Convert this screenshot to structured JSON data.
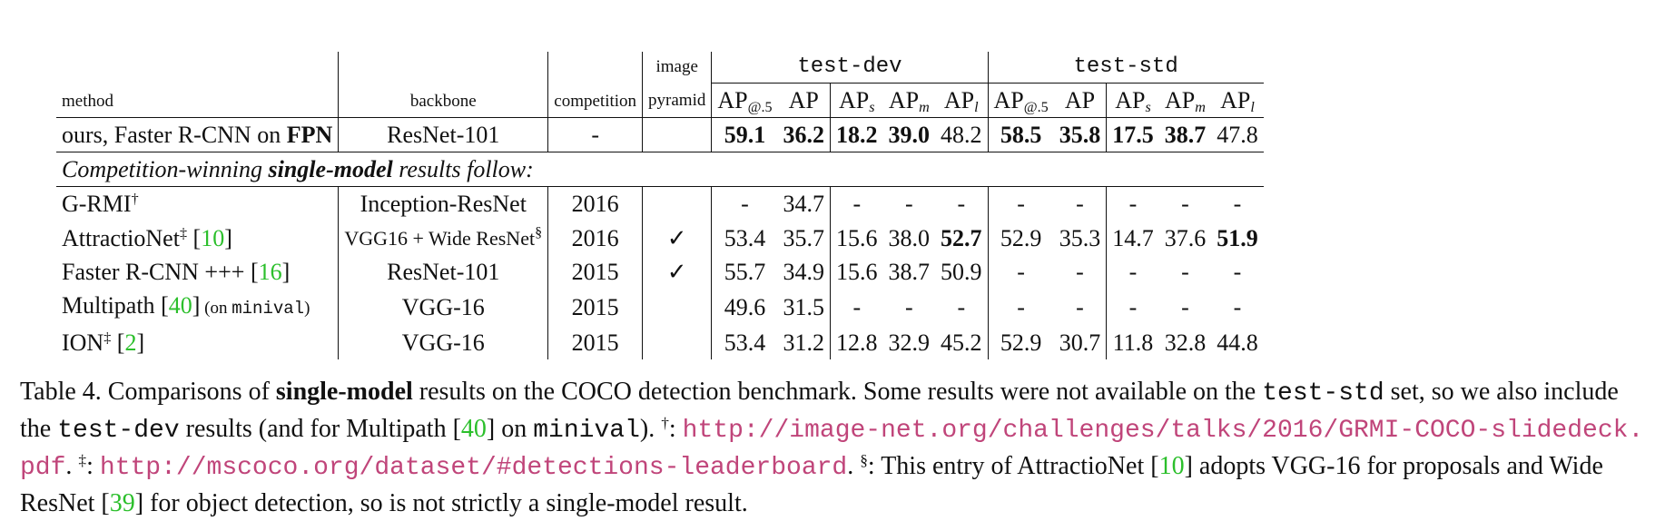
{
  "table": {
    "headers": {
      "method": "method",
      "backbone": "backbone",
      "competition": "competition",
      "pyramid_line1": "image",
      "pyramid_line2": "pyramid",
      "group_dev": "test-dev",
      "group_std": "test-std",
      "metric_base": "AP",
      "sub_50": "@.5",
      "sub_s": "s",
      "sub_m": "m",
      "sub_l": "l"
    },
    "ours": {
      "method_prefix": "ours, Faster R-CNN on ",
      "method_bold": "FPN",
      "backbone": "ResNet-101",
      "competition": "-",
      "pyramid": "",
      "dev": [
        "59.1",
        "36.2",
        "18.2",
        "39.0",
        "48.2"
      ],
      "std": [
        "58.5",
        "35.8",
        "17.5",
        "38.7",
        "47.8"
      ]
    },
    "section_label": {
      "part1": "Competition-winning ",
      "part2": "single-model",
      "part3": " results follow:"
    },
    "rows": [
      {
        "name": "G-RMI",
        "mark": "†",
        "ref": "",
        "note": "",
        "note_mono": "",
        "note_end": "",
        "backbone": "Inception-ResNet",
        "backbone_mark": "",
        "competition": "2016",
        "pyramid": "",
        "dev": [
          "-",
          "34.7",
          "-",
          "-",
          "-"
        ],
        "std": [
          "-",
          "-",
          "-",
          "-",
          "-"
        ]
      },
      {
        "name": "AttractioNet",
        "mark": "‡",
        "ref": "10",
        "note": "",
        "note_mono": "",
        "note_end": "",
        "backbone": "VGG16 + Wide ResNet",
        "backbone_mark": "§",
        "competition": "2016",
        "pyramid": "✓",
        "dev": [
          "53.4",
          "35.7",
          "15.6",
          "38.0",
          "52.7"
        ],
        "std": [
          "52.9",
          "35.3",
          "14.7",
          "37.6",
          "51.9"
        ]
      },
      {
        "name": "Faster R-CNN +++",
        "mark": "",
        "ref": "16",
        "note": "",
        "note_mono": "",
        "note_end": "",
        "backbone": "ResNet-101",
        "backbone_mark": "",
        "competition": "2015",
        "pyramid": "✓",
        "dev": [
          "55.7",
          "34.9",
          "15.6",
          "38.7",
          "50.9"
        ],
        "std": [
          "-",
          "-",
          "-",
          "-",
          "-"
        ]
      },
      {
        "name": "Multipath",
        "mark": "",
        "ref": "40",
        "note": "(on ",
        "note_mono": "minival",
        "note_end": ")",
        "backbone": "VGG-16",
        "backbone_mark": "",
        "competition": "2015",
        "pyramid": "",
        "dev": [
          "49.6",
          "31.5",
          "-",
          "-",
          "-"
        ],
        "std": [
          "-",
          "-",
          "-",
          "-",
          "-"
        ]
      },
      {
        "name": "ION",
        "mark": "‡",
        "ref": "2",
        "note": "",
        "note_mono": "",
        "note_end": "",
        "backbone": "VGG-16",
        "backbone_mark": "",
        "competition": "2015",
        "pyramid": "",
        "dev": [
          "53.4",
          "31.2",
          "12.8",
          "32.9",
          "45.2"
        ],
        "std": [
          "52.9",
          "30.7",
          "11.8",
          "32.8",
          "44.8"
        ]
      }
    ]
  },
  "caption": {
    "t1": "Table 4. Comparisons of ",
    "t1b": "single-model",
    "t2": " results on the COCO detection benchmark. Some results were not available on the ",
    "t2m": "test-std",
    "t3": " set, so we also include the ",
    "t3m": "test-dev",
    "t4": " results (and for Multipath [",
    "ref40": "40",
    "t5": "] on ",
    "t5m": "minival",
    "t6": "). ",
    "dag": "†",
    "t7": ": ",
    "url1": "http://image-net.org/challenges/talks/2016/GRMI-COCO-slidedeck.pdf",
    "t8": ". ",
    "ddag": "‡",
    "t9": ": ",
    "url2": "http://mscoco.org/dataset/#detections-leaderboard",
    "t10": ". ",
    "sect": "§",
    "t11": ": This entry of AttractioNet [",
    "ref10": "10",
    "t12": "] adopts VGG-16 for proposals and Wide ResNet [",
    "ref39": "39",
    "t13": "] for object detection, so is not strictly a single-model result."
  },
  "colors": {
    "link_green": "#2bbf2b",
    "url_pink": "#c0457a",
    "rule": "#111111"
  }
}
